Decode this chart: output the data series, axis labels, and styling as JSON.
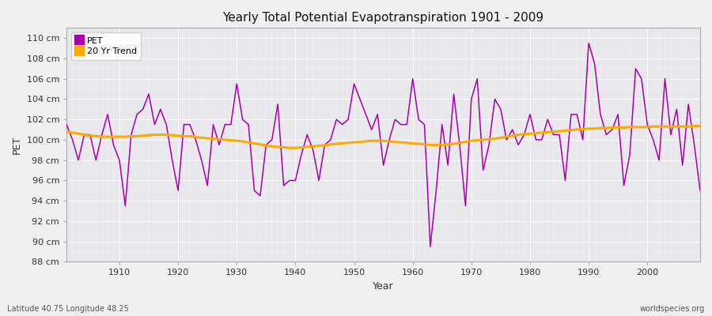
{
  "title": "Yearly Total Potential Evapotranspiration 1901 - 2009",
  "xlabel": "Year",
  "ylabel": "PET",
  "bottom_left": "Latitude 40.75 Longitude 48.25",
  "bottom_right": "worldspecies.org",
  "ylim": [
    88,
    111
  ],
  "yticks": [
    88,
    90,
    92,
    94,
    96,
    98,
    100,
    102,
    104,
    106,
    108,
    110
  ],
  "ytick_labels": [
    "88 cm",
    "90 cm",
    "92 cm",
    "94 cm",
    "96 cm",
    "98 cm",
    "100 cm",
    "102 cm",
    "104 cm",
    "106 cm",
    "108 cm",
    "110 cm"
  ],
  "pet_color": "#aa00aa",
  "trend_color": "#ffaa00",
  "fig_bg_color": "#f0f0f0",
  "plot_bg_color": "#e8e8ec",
  "grid_color": "#ffffff",
  "years": [
    1901,
    1902,
    1903,
    1904,
    1905,
    1906,
    1907,
    1908,
    1909,
    1910,
    1911,
    1912,
    1913,
    1914,
    1915,
    1916,
    1917,
    1918,
    1919,
    1920,
    1921,
    1922,
    1923,
    1924,
    1925,
    1926,
    1927,
    1928,
    1929,
    1930,
    1931,
    1932,
    1933,
    1934,
    1935,
    1936,
    1937,
    1938,
    1939,
    1940,
    1941,
    1942,
    1943,
    1944,
    1945,
    1946,
    1947,
    1948,
    1949,
    1950,
    1951,
    1952,
    1953,
    1954,
    1955,
    1956,
    1957,
    1958,
    1959,
    1960,
    1961,
    1962,
    1963,
    1964,
    1965,
    1966,
    1967,
    1968,
    1969,
    1970,
    1971,
    1972,
    1973,
    1974,
    1975,
    1976,
    1977,
    1978,
    1979,
    1980,
    1981,
    1982,
    1983,
    1984,
    1985,
    1986,
    1987,
    1988,
    1989,
    1990,
    1991,
    1992,
    1993,
    1994,
    1995,
    1996,
    1997,
    1998,
    1999,
    2000,
    2001,
    2002,
    2003,
    2004,
    2005,
    2006,
    2007,
    2008,
    2009
  ],
  "pet_values": [
    101.5,
    100.0,
    98.0,
    100.5,
    100.5,
    98.0,
    100.5,
    102.5,
    99.5,
    98.0,
    93.5,
    100.5,
    102.5,
    103.0,
    104.5,
    101.5,
    103.0,
    101.5,
    98.0,
    95.0,
    101.5,
    101.5,
    100.0,
    98.0,
    95.5,
    101.5,
    99.5,
    101.5,
    101.5,
    105.5,
    102.0,
    101.5,
    95.0,
    94.5,
    99.5,
    100.0,
    103.5,
    95.5,
    96.0,
    96.0,
    98.5,
    100.5,
    99.0,
    96.0,
    99.5,
    100.0,
    102.0,
    101.5,
    102.0,
    105.5,
    104.0,
    102.5,
    101.0,
    102.5,
    97.5,
    100.0,
    102.0,
    101.5,
    101.5,
    106.0,
    102.0,
    101.5,
    89.5,
    95.0,
    101.5,
    97.5,
    104.5,
    99.5,
    93.5,
    104.0,
    106.0,
    97.0,
    99.5,
    104.0,
    103.0,
    100.0,
    101.0,
    99.5,
    100.5,
    102.5,
    100.0,
    100.0,
    102.0,
    100.5,
    100.5,
    96.0,
    102.5,
    102.5,
    100.0,
    109.5,
    107.5,
    102.5,
    100.5,
    101.0,
    102.5,
    95.5,
    98.5,
    107.0,
    106.0,
    101.5,
    100.0,
    98.0,
    106.0,
    100.5,
    103.0,
    97.5,
    103.5,
    99.5,
    95.0
  ],
  "trend_values": [
    100.8,
    100.7,
    100.6,
    100.5,
    100.4,
    100.35,
    100.3,
    100.3,
    100.3,
    100.3,
    100.3,
    100.35,
    100.35,
    100.4,
    100.45,
    100.5,
    100.5,
    100.5,
    100.45,
    100.4,
    100.35,
    100.35,
    100.3,
    100.2,
    100.15,
    100.1,
    100.05,
    100.0,
    99.95,
    99.9,
    99.85,
    99.75,
    99.65,
    99.55,
    99.45,
    99.35,
    99.3,
    99.25,
    99.2,
    99.2,
    99.25,
    99.3,
    99.35,
    99.4,
    99.45,
    99.55,
    99.6,
    99.65,
    99.7,
    99.75,
    99.8,
    99.85,
    99.9,
    99.9,
    99.9,
    99.85,
    99.8,
    99.75,
    99.7,
    99.65,
    99.6,
    99.55,
    99.5,
    99.5,
    99.5,
    99.55,
    99.6,
    99.7,
    99.8,
    99.9,
    99.95,
    100.0,
    100.05,
    100.1,
    100.2,
    100.3,
    100.4,
    100.5,
    100.55,
    100.6,
    100.65,
    100.7,
    100.75,
    100.8,
    100.85,
    100.9,
    100.95,
    101.0,
    101.05,
    101.1,
    101.1,
    101.15,
    101.15,
    101.2,
    101.2,
    101.2,
    101.25,
    101.25,
    101.25,
    101.25,
    101.3,
    101.3,
    101.3,
    101.3,
    101.3,
    101.3,
    101.3,
    101.35,
    101.35
  ]
}
